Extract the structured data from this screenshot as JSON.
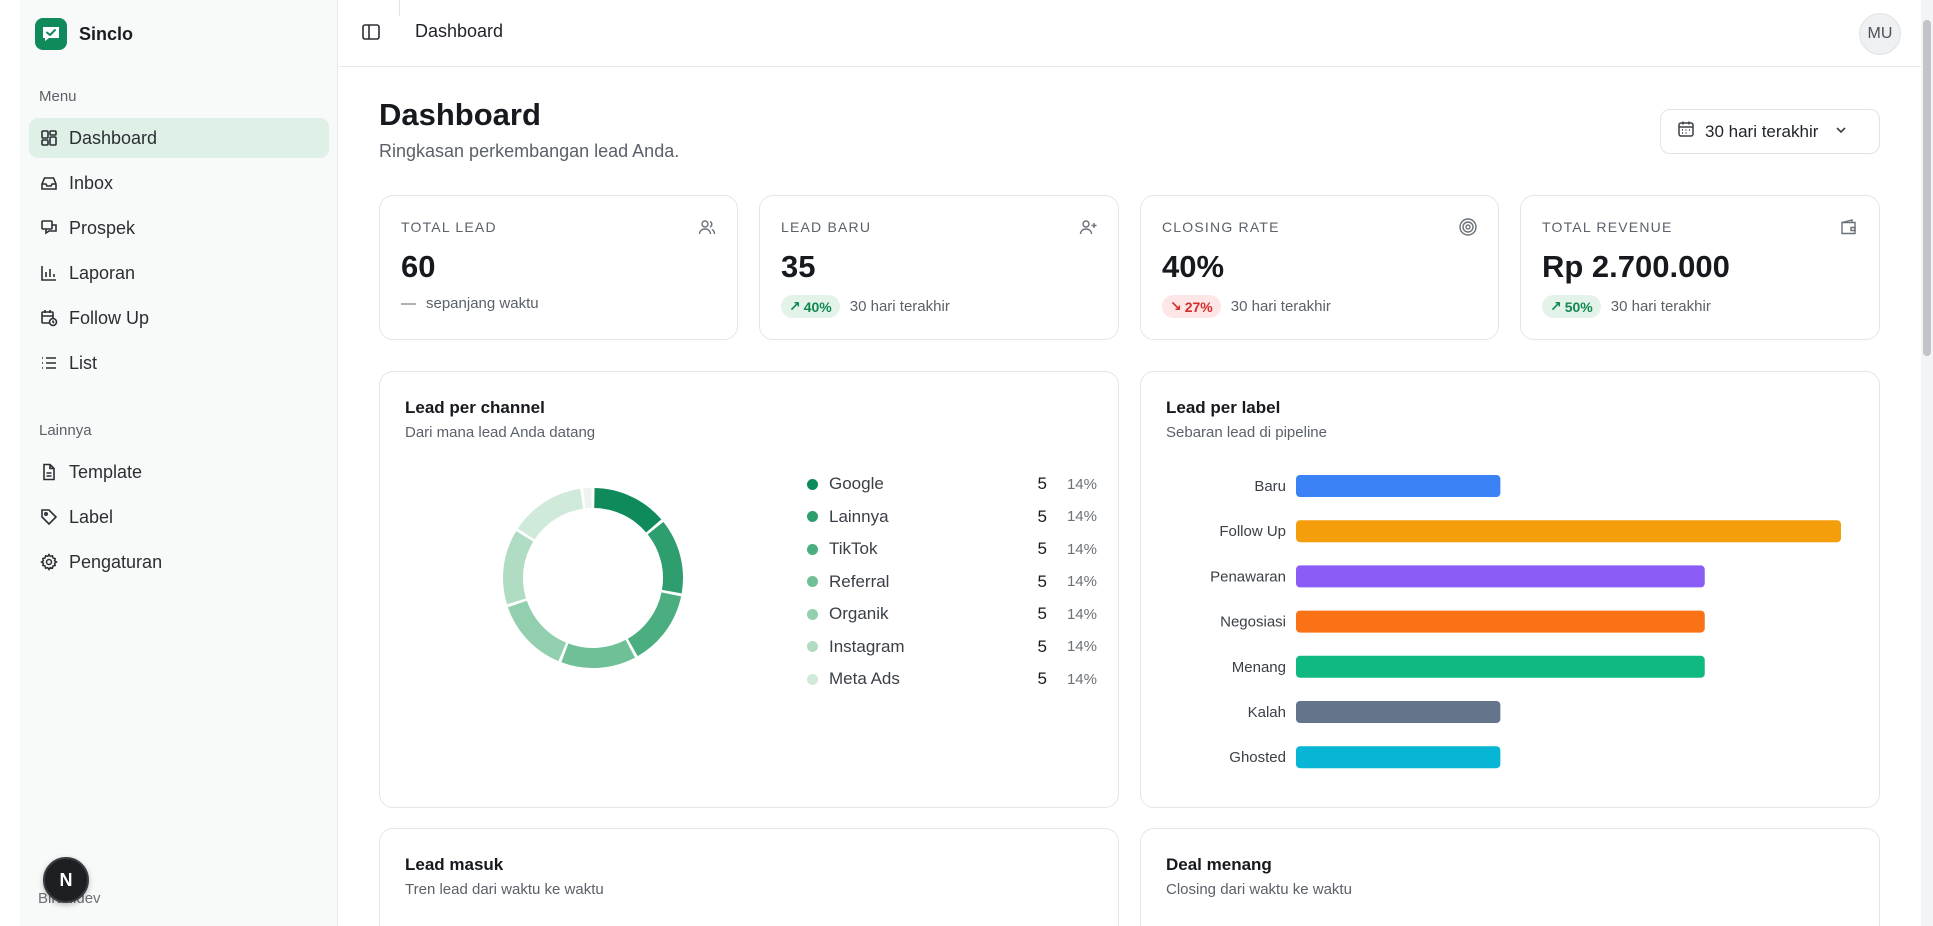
{
  "brand": {
    "name": "Sinclo"
  },
  "sidebar": {
    "menu_heading": "Menu",
    "menu": [
      {
        "label": "Dashboard",
        "icon": "dashboard-icon",
        "active": true
      },
      {
        "label": "Inbox",
        "icon": "inbox-icon"
      },
      {
        "label": "Prospek",
        "icon": "prospek-icon"
      },
      {
        "label": "Laporan",
        "icon": "bar-chart-icon"
      },
      {
        "label": "Follow Up",
        "icon": "calendar-clock-icon"
      },
      {
        "label": "List",
        "icon": "list-icon"
      }
    ],
    "other_heading": "Lainnya",
    "other": [
      {
        "label": "Template",
        "icon": "file-icon"
      },
      {
        "label": "Label",
        "icon": "tag-icon"
      },
      {
        "label": "Pengaturan",
        "icon": "gear-icon"
      }
    ],
    "footer_text": "Birahidev",
    "footer_badge": "N"
  },
  "topbar": {
    "title": "Dashboard",
    "avatar_initials": "MU"
  },
  "header": {
    "title": "Dashboard",
    "subtitle": "Ringkasan perkembangan lead Anda.",
    "date_range": "30 hari terakhir"
  },
  "stats": [
    {
      "label": "TOTAL LEAD",
      "value": "60",
      "foot_prefix": "—",
      "foot": "sepanjang waktu",
      "icon": "users-icon"
    },
    {
      "label": "LEAD BARU",
      "value": "35",
      "change": "40%",
      "direction": "up",
      "foot": "30 hari terakhir",
      "icon": "user-plus-icon"
    },
    {
      "label": "CLOSING RATE",
      "value": "40%",
      "change": "27%",
      "direction": "down",
      "foot": "30 hari terakhir",
      "icon": "target-icon"
    },
    {
      "label": "TOTAL REVENUE",
      "value": "Rp 2.700.000",
      "change": "50%",
      "direction": "up",
      "foot": "30 hari terakhir",
      "icon": "wallet-icon"
    }
  ],
  "colors": {
    "accent": "#0f8a5b",
    "up": "#11884f",
    "down": "#d42b2b"
  },
  "channel_card": {
    "title": "Lead per channel",
    "subtitle": "Dari mana lead Anda datang",
    "chart_data": {
      "type": "pie",
      "categories": [
        "Google",
        "Lainnya",
        "TikTok",
        "Referral",
        "Organik",
        "Instagram",
        "Meta Ads"
      ],
      "values": [
        5,
        5,
        5,
        5,
        5,
        5,
        5
      ],
      "percent_labels": [
        "14%",
        "14%",
        "14%",
        "14%",
        "14%",
        "14%",
        "14%"
      ],
      "colors": [
        "#0f8a5b",
        "#2f9e6e",
        "#4bae80",
        "#6fbf97",
        "#92cfae",
        "#b0dcc3",
        "#cfe9da"
      ],
      "remainder_color": "#eef2f0"
    }
  },
  "label_card": {
    "title": "Lead per label",
    "subtitle": "Sebaran lead di pipeline",
    "chart_data": {
      "type": "bar",
      "orientation": "horizontal",
      "categories": [
        "Baru",
        "Follow Up",
        "Penawaran",
        "Negosiasi",
        "Menang",
        "Kalah",
        "Ghosted"
      ],
      "values": [
        3,
        8,
        6,
        6,
        6,
        3,
        3
      ],
      "colors": [
        "#3b82f6",
        "#f59e0b",
        "#8b5cf6",
        "#f97316",
        "#10b981",
        "#64748b",
        "#06b6d4"
      ],
      "xlim": [
        0,
        8
      ]
    }
  },
  "lead_in_card": {
    "title": "Lead masuk",
    "subtitle": "Tren lead dari waktu ke waktu"
  },
  "deal_card": {
    "title": "Deal menang",
    "subtitle": "Closing dari waktu ke waktu"
  }
}
